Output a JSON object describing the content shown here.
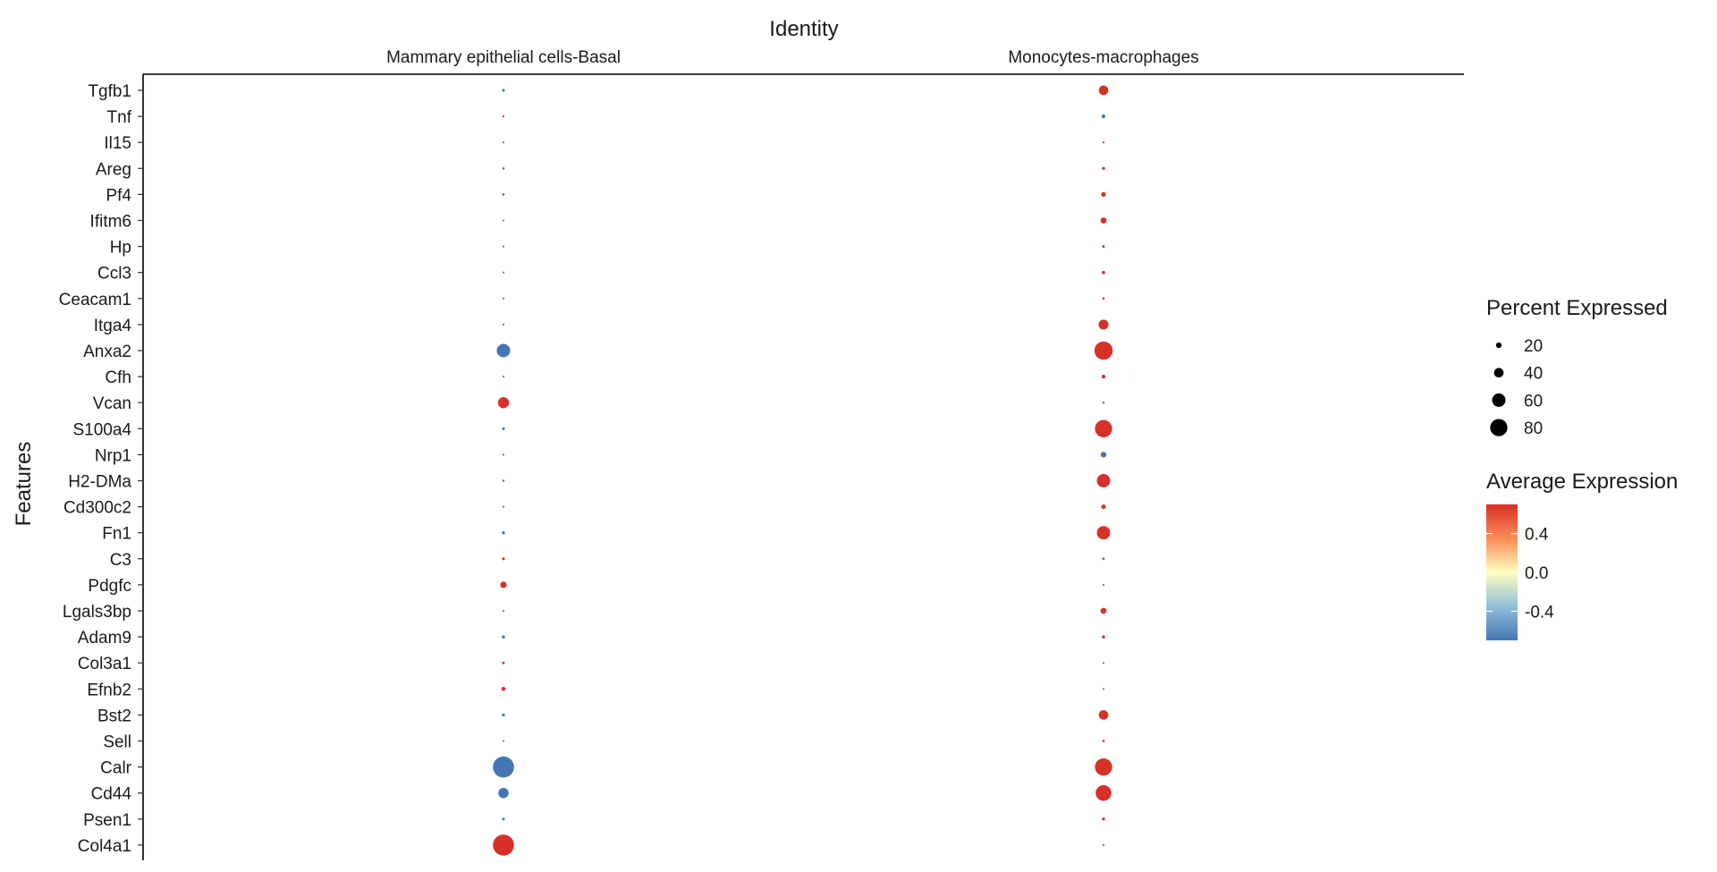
{
  "chart_data": {
    "type": "scatter",
    "subtype": "dot-plot",
    "title": "Identity",
    "ylabel": "Features",
    "columns": [
      "Mammary epithelial cells-Basal",
      "Monocytes-macrophages"
    ],
    "features": [
      "Tgfb1",
      "Tnf",
      "Il15",
      "Areg",
      "Pf4",
      "Ifitm6",
      "Hp",
      "Ccl3",
      "Ceacam1",
      "Itga4",
      "Anxa2",
      "Cfh",
      "Vcan",
      "S100a4",
      "Nrp1",
      "H2-DMa",
      "Cd300c2",
      "Fn1",
      "C3",
      "Pdgfc",
      "Lgals3bp",
      "Adam9",
      "Col3a1",
      "Efnb2",
      "Bst2",
      "Sell",
      "Calr",
      "Cd44",
      "Psen1",
      "Col4a1"
    ],
    "points": [
      {
        "feature": "Tgfb1",
        "identity": "Mammary epithelial cells-Basal",
        "pct": 5,
        "avg": -0.7
      },
      {
        "feature": "Tgfb1",
        "identity": "Monocytes-macrophages",
        "pct": 40,
        "avg": 0.7
      },
      {
        "feature": "Tnf",
        "identity": "Mammary epithelial cells-Basal",
        "pct": 1,
        "avg": 0.7
      },
      {
        "feature": "Tnf",
        "identity": "Monocytes-macrophages",
        "pct": 10,
        "avg": -0.7
      },
      {
        "feature": "Il15",
        "identity": "Mammary epithelial cells-Basal",
        "pct": 0.5,
        "avg": -0.7
      },
      {
        "feature": "Il15",
        "identity": "Monocytes-macrophages",
        "pct": 1,
        "avg": 0.7
      },
      {
        "feature": "Areg",
        "identity": "Mammary epithelial cells-Basal",
        "pct": 3,
        "avg": -0.7
      },
      {
        "feature": "Areg",
        "identity": "Monocytes-macrophages",
        "pct": 6,
        "avg": 0.7
      },
      {
        "feature": "Pf4",
        "identity": "Mammary epithelial cells-Basal",
        "pct": 3,
        "avg": -0.7
      },
      {
        "feature": "Pf4",
        "identity": "Monocytes-macrophages",
        "pct": 15,
        "avg": 0.7
      },
      {
        "feature": "Ifitm6",
        "identity": "Mammary epithelial cells-Basal",
        "pct": 0.5,
        "avg": -0.7
      },
      {
        "feature": "Ifitm6",
        "identity": "Monocytes-macrophages",
        "pct": 22,
        "avg": 0.7
      },
      {
        "feature": "Hp",
        "identity": "Mammary epithelial cells-Basal",
        "pct": 0.5,
        "avg": -0.7
      },
      {
        "feature": "Hp",
        "identity": "Monocytes-macrophages",
        "pct": 4,
        "avg": 0.7
      },
      {
        "feature": "Ccl3",
        "identity": "Mammary epithelial cells-Basal",
        "pct": 0.5,
        "avg": -0.7
      },
      {
        "feature": "Ccl3",
        "identity": "Monocytes-macrophages",
        "pct": 8,
        "avg": 0.7
      },
      {
        "feature": "Ceacam1",
        "identity": "Mammary epithelial cells-Basal",
        "pct": 0.5,
        "avg": -0.7
      },
      {
        "feature": "Ceacam1",
        "identity": "Monocytes-macrophages",
        "pct": 3,
        "avg": 0.7
      },
      {
        "feature": "Itga4",
        "identity": "Mammary epithelial cells-Basal",
        "pct": 1,
        "avg": -0.7
      },
      {
        "feature": "Itga4",
        "identity": "Monocytes-macrophages",
        "pct": 42,
        "avg": 0.7
      },
      {
        "feature": "Anxa2",
        "identity": "Mammary epithelial cells-Basal",
        "pct": 60,
        "avg": -0.7
      },
      {
        "feature": "Anxa2",
        "identity": "Monocytes-macrophages",
        "pct": 85,
        "avg": 0.7
      },
      {
        "feature": "Cfh",
        "identity": "Mammary epithelial cells-Basal",
        "pct": 0.5,
        "avg": -0.7
      },
      {
        "feature": "Cfh",
        "identity": "Monocytes-macrophages",
        "pct": 10,
        "avg": 0.7
      },
      {
        "feature": "Vcan",
        "identity": "Mammary epithelial cells-Basal",
        "pct": 48,
        "avg": 0.7
      },
      {
        "feature": "Vcan",
        "identity": "Monocytes-macrophages",
        "pct": 2,
        "avg": -0.7
      },
      {
        "feature": "S100a4",
        "identity": "Mammary epithelial cells-Basal",
        "pct": 5,
        "avg": -0.7
      },
      {
        "feature": "S100a4",
        "identity": "Monocytes-macrophages",
        "pct": 80,
        "avg": 0.7
      },
      {
        "feature": "Nrp1",
        "identity": "Mammary epithelial cells-Basal",
        "pct": 0.5,
        "avg": 0.7
      },
      {
        "feature": "Nrp1",
        "identity": "Monocytes-macrophages",
        "pct": 20,
        "avg": -0.7
      },
      {
        "feature": "H2-DMa",
        "identity": "Mammary epithelial cells-Basal",
        "pct": 2,
        "avg": -0.7
      },
      {
        "feature": "H2-DMa",
        "identity": "Monocytes-macrophages",
        "pct": 60,
        "avg": 0.7
      },
      {
        "feature": "Cd300c2",
        "identity": "Mammary epithelial cells-Basal",
        "pct": 0.5,
        "avg": -0.7
      },
      {
        "feature": "Cd300c2",
        "identity": "Monocytes-macrophages",
        "pct": 14,
        "avg": 0.7
      },
      {
        "feature": "Fn1",
        "identity": "Mammary epithelial cells-Basal",
        "pct": 6,
        "avg": -0.7
      },
      {
        "feature": "Fn1",
        "identity": "Monocytes-macrophages",
        "pct": 60,
        "avg": 0.7
      },
      {
        "feature": "C3",
        "identity": "Mammary epithelial cells-Basal",
        "pct": 5,
        "avg": 0.7
      },
      {
        "feature": "C3",
        "identity": "Monocytes-macrophages",
        "pct": 4,
        "avg": -0.7
      },
      {
        "feature": "Pdgfc",
        "identity": "Mammary epithelial cells-Basal",
        "pct": 24,
        "avg": 0.7
      },
      {
        "feature": "Pdgfc",
        "identity": "Monocytes-macrophages",
        "pct": 0.5,
        "avg": 0.7
      },
      {
        "feature": "Lgals3bp",
        "identity": "Mammary epithelial cells-Basal",
        "pct": 0.5,
        "avg": -0.7
      },
      {
        "feature": "Lgals3bp",
        "identity": "Monocytes-macrophages",
        "pct": 22,
        "avg": 0.7
      },
      {
        "feature": "Adam9",
        "identity": "Mammary epithelial cells-Basal",
        "pct": 7,
        "avg": -0.7
      },
      {
        "feature": "Adam9",
        "identity": "Monocytes-macrophages",
        "pct": 7,
        "avg": 0.7
      },
      {
        "feature": "Col3a1",
        "identity": "Mammary epithelial cells-Basal",
        "pct": 4,
        "avg": 0.7
      },
      {
        "feature": "Col3a1",
        "identity": "Monocytes-macrophages",
        "pct": 0.5,
        "avg": -0.7
      },
      {
        "feature": "Efnb2",
        "identity": "Mammary epithelial cells-Basal",
        "pct": 12,
        "avg": 0.7
      },
      {
        "feature": "Efnb2",
        "identity": "Monocytes-macrophages",
        "pct": 0.5,
        "avg": -0.7
      },
      {
        "feature": "Bst2",
        "identity": "Mammary epithelial cells-Basal",
        "pct": 6,
        "avg": -0.7
      },
      {
        "feature": "Bst2",
        "identity": "Monocytes-macrophages",
        "pct": 40,
        "avg": 0.7
      },
      {
        "feature": "Sell",
        "identity": "Mammary epithelial cells-Basal",
        "pct": 0.5,
        "avg": -0.7
      },
      {
        "feature": "Sell",
        "identity": "Monocytes-macrophages",
        "pct": 3,
        "avg": 0.7
      },
      {
        "feature": "Calr",
        "identity": "Mammary epithelial cells-Basal",
        "pct": 100,
        "avg": -0.7
      },
      {
        "feature": "Calr",
        "identity": "Monocytes-macrophages",
        "pct": 80,
        "avg": 0.7
      },
      {
        "feature": "Cd44",
        "identity": "Mammary epithelial cells-Basal",
        "pct": 44,
        "avg": -0.7
      },
      {
        "feature": "Cd44",
        "identity": "Monocytes-macrophages",
        "pct": 72,
        "avg": 0.7
      },
      {
        "feature": "Psen1",
        "identity": "Mammary epithelial cells-Basal",
        "pct": 5,
        "avg": -0.7
      },
      {
        "feature": "Psen1",
        "identity": "Monocytes-macrophages",
        "pct": 6,
        "avg": 0.7
      },
      {
        "feature": "Col4a1",
        "identity": "Mammary epithelial cells-Basal",
        "pct": 100,
        "avg": 0.7
      },
      {
        "feature": "Col4a1",
        "identity": "Monocytes-macrophages",
        "pct": 1,
        "avg": -0.7
      }
    ],
    "size_legend": {
      "title": "Percent Expressed",
      "values": [
        20,
        40,
        60,
        80
      ],
      "labels": [
        "20",
        "40",
        "60",
        "80"
      ]
    },
    "color_legend": {
      "title": "Average Expression",
      "range": [
        -0.7,
        0.7
      ],
      "ticks": [
        0.4,
        0.0,
        -0.4
      ],
      "tick_labels": [
        "0.4",
        "0.0",
        "-0.4"
      ],
      "colors": [
        "#4575b4",
        "#91bfdb",
        "#ffffbf",
        "#fc8d59",
        "#d73027"
      ]
    },
    "grid": false
  }
}
